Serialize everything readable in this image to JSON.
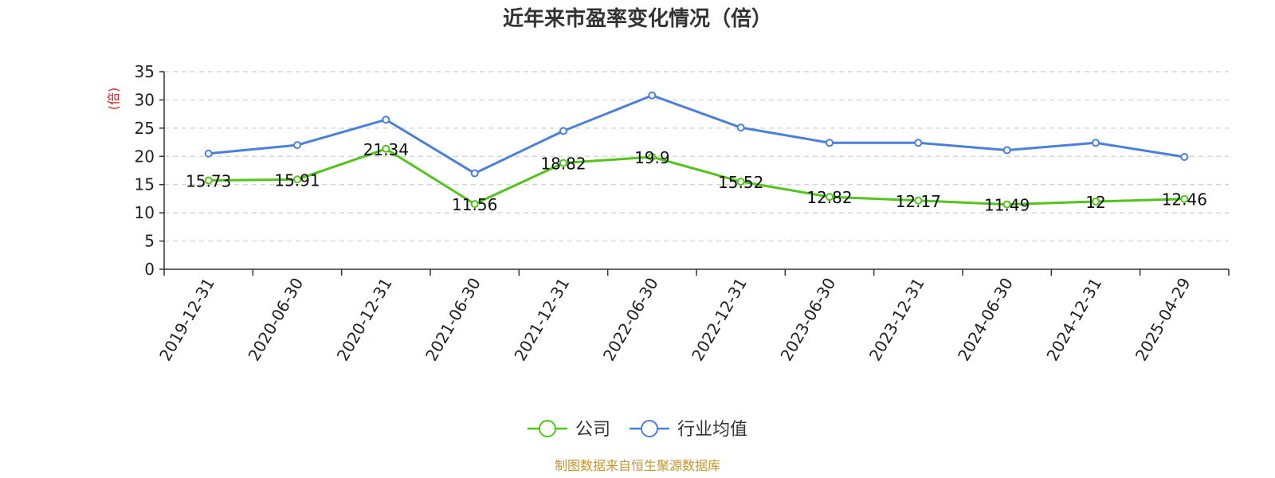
{
  "chart_data": {
    "type": "line",
    "title": "近年来市盈率变化情况（倍）",
    "ylabel": "(倍)",
    "xlabel": "",
    "ylim": [
      0,
      35
    ],
    "yticks": [
      0,
      5,
      10,
      15,
      20,
      25,
      30,
      35
    ],
    "grid": true,
    "legend_position": "bottom",
    "categories": [
      "2019-12-31",
      "2020-06-30",
      "2020-12-31",
      "2021-06-30",
      "2021-12-31",
      "2022-06-30",
      "2022-12-31",
      "2023-06-30",
      "2023-12-31",
      "2024-06-30",
      "2024-12-31",
      "2025-04-29"
    ],
    "series": [
      {
        "name": "公司",
        "color": "#52c41a",
        "values": [
          15.73,
          15.91,
          21.34,
          11.56,
          18.82,
          19.9,
          15.52,
          12.82,
          12.17,
          11.49,
          12,
          12.46
        ],
        "labels": [
          "15.73",
          "15.91",
          "21.34",
          "11.56",
          "18.82",
          "19.9",
          "15.52",
          "12.82",
          "12.17",
          "11.49",
          "12",
          "12.46"
        ]
      },
      {
        "name": "行业均值",
        "color": "#4a7fdc",
        "values": [
          20.5,
          22.0,
          26.5,
          17.0,
          24.5,
          30.8,
          25.1,
          22.4,
          22.4,
          21.1,
          22.4,
          19.9
        ]
      }
    ],
    "source": "制图数据来自恒生聚源数据库",
    "source_color": "#c8962e",
    "ylabel_color": "#e02020"
  }
}
